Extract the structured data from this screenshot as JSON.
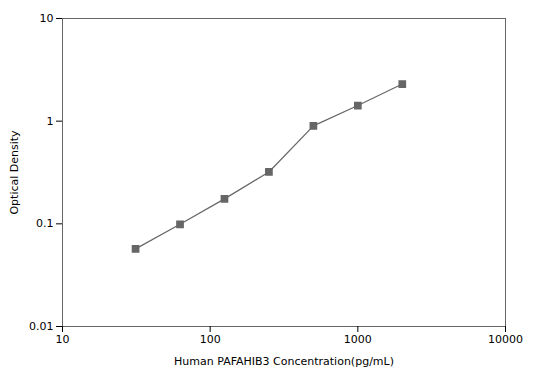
{
  "chart_data": {
    "type": "line",
    "xlabel": "Human PAFAHIB3 Concentration(pg/mL)",
    "ylabel": "Optical Density",
    "x": [
      31.25,
      62.5,
      125,
      250,
      500,
      1000,
      2000
    ],
    "values": [
      0.057,
      0.099,
      0.175,
      0.32,
      0.9,
      1.42,
      2.3
    ],
    "xlim": [
      10,
      10000
    ],
    "ylim": [
      0.01,
      10
    ],
    "xticks": [
      10,
      100,
      1000,
      10000
    ],
    "yticks": [
      0.01,
      0.1,
      1,
      10
    ],
    "log": true,
    "color": "#666666",
    "marker": "square"
  }
}
